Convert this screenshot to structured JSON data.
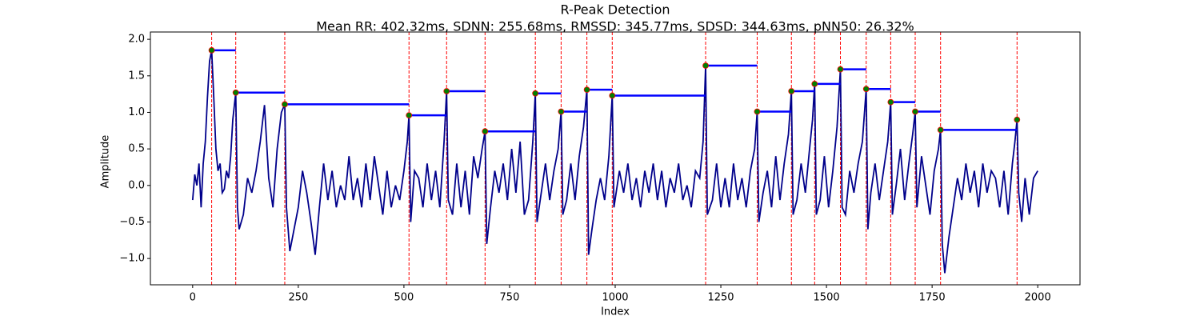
{
  "chart_data": {
    "type": "line",
    "title": "R-Peak Detection",
    "subtitle": "Mean RR: 402.32ms, SDNN: 255.68ms, RMSSD: 345.77ms, SDSD: 344.63ms, pNN50: 26.32%",
    "x_label": "Index",
    "y_label": "Amplitude",
    "xlim": [
      -100,
      2100
    ],
    "ylim": [
      -1.36,
      2.1
    ],
    "xticks": [
      0,
      250,
      500,
      750,
      1000,
      1250,
      1500,
      1750,
      2000
    ],
    "yticks": [
      {
        "value": -1,
        "label": "−1.0"
      },
      {
        "value": -0.5,
        "label": "−0.5"
      },
      {
        "value": 0,
        "label": "0.0"
      },
      0.5,
      {
        "value": 1,
        "label": "1.0"
      },
      1.5,
      {
        "value": 2,
        "label": "2.0"
      }
    ],
    "grid": false,
    "signal": {
      "color": "#00008b",
      "x": [
        0,
        5,
        10,
        15,
        20,
        25,
        30,
        35,
        40,
        45,
        50,
        55,
        60,
        65,
        70,
        75,
        80,
        85,
        90,
        95,
        102,
        106,
        110,
        120,
        130,
        140,
        150,
        160,
        170,
        175,
        180,
        190,
        200,
        210,
        218,
        222,
        230,
        240,
        250,
        260,
        270,
        280,
        290,
        300,
        310,
        320,
        330,
        340,
        350,
        360,
        370,
        380,
        390,
        400,
        410,
        420,
        430,
        440,
        450,
        460,
        470,
        480,
        490,
        500,
        508,
        512,
        516,
        525,
        535,
        545,
        555,
        565,
        575,
        585,
        595,
        601,
        605,
        615,
        625,
        635,
        645,
        655,
        665,
        675,
        685,
        692,
        696,
        705,
        715,
        725,
        735,
        745,
        755,
        765,
        775,
        785,
        795,
        805,
        811,
        815,
        825,
        835,
        845,
        855,
        865,
        872,
        876,
        885,
        895,
        905,
        915,
        925,
        933,
        937,
        945,
        955,
        965,
        975,
        985,
        993,
        997,
        1010,
        1020,
        1030,
        1040,
        1050,
        1060,
        1070,
        1080,
        1090,
        1100,
        1110,
        1120,
        1130,
        1140,
        1150,
        1160,
        1170,
        1180,
        1190,
        1200,
        1208,
        1214,
        1218,
        1230,
        1240,
        1250,
        1260,
        1270,
        1280,
        1290,
        1300,
        1310,
        1320,
        1330,
        1336,
        1340,
        1350,
        1360,
        1370,
        1380,
        1390,
        1400,
        1410,
        1417,
        1421,
        1430,
        1440,
        1450,
        1460,
        1467,
        1472,
        1476,
        1485,
        1495,
        1505,
        1515,
        1525,
        1533,
        1537,
        1545,
        1555,
        1565,
        1575,
        1585,
        1594,
        1598,
        1605,
        1615,
        1625,
        1635,
        1645,
        1652,
        1656,
        1665,
        1675,
        1685,
        1695,
        1704,
        1710,
        1714,
        1725,
        1735,
        1745,
        1755,
        1765,
        1770,
        1774,
        1780,
        1790,
        1800,
        1810,
        1820,
        1830,
        1840,
        1850,
        1860,
        1870,
        1880,
        1890,
        1900,
        1910,
        1920,
        1930,
        1940,
        1946,
        1951,
        1955,
        1962,
        1970,
        1980,
        1990,
        2000
      ],
      "values": [
        -0.2,
        0.15,
        0.0,
        0.3,
        -0.3,
        0.3,
        0.6,
        1.2,
        1.7,
        1.85,
        1.2,
        0.5,
        0.2,
        0.3,
        -0.1,
        -0.05,
        0.2,
        0.1,
        0.4,
        0.9,
        1.27,
        -0.3,
        -0.6,
        -0.4,
        0.1,
        -0.1,
        0.2,
        0.6,
        1.1,
        0.6,
        0.1,
        -0.3,
        0.5,
        1.0,
        1.11,
        -0.3,
        -0.9,
        -0.6,
        -0.3,
        0.2,
        -0.1,
        -0.5,
        -0.95,
        -0.3,
        0.3,
        -0.2,
        0.2,
        -0.3,
        0.0,
        -0.2,
        0.4,
        -0.2,
        0.1,
        -0.3,
        0.3,
        -0.2,
        0.4,
        0.0,
        -0.4,
        0.2,
        -0.3,
        0.0,
        -0.2,
        0.2,
        0.6,
        0.96,
        -0.5,
        0.2,
        0.1,
        -0.3,
        0.3,
        -0.2,
        0.2,
        -0.3,
        0.6,
        1.29,
        -0.2,
        -0.4,
        0.3,
        -0.3,
        0.2,
        -0.4,
        0.4,
        0.1,
        0.5,
        0.74,
        -0.8,
        -0.3,
        0.2,
        -0.1,
        0.3,
        -0.2,
        0.5,
        -0.1,
        0.6,
        -0.4,
        -0.2,
        0.6,
        1.26,
        -0.5,
        -0.1,
        0.3,
        -0.2,
        0.2,
        0.5,
        1.01,
        -0.4,
        -0.2,
        0.3,
        -0.2,
        0.4,
        0.8,
        1.31,
        -0.95,
        -0.6,
        -0.2,
        0.1,
        -0.2,
        0.4,
        1.23,
        -0.3,
        0.2,
        -0.1,
        0.3,
        -0.2,
        0.1,
        -0.3,
        0.2,
        -0.1,
        0.3,
        -0.2,
        0.2,
        -0.3,
        0.1,
        -0.1,
        0.3,
        -0.2,
        0.0,
        -0.3,
        0.2,
        0.1,
        0.6,
        1.64,
        -0.4,
        -0.2,
        0.3,
        -0.3,
        0.1,
        -0.3,
        0.3,
        -0.2,
        0.1,
        -0.3,
        0.2,
        0.5,
        1.01,
        -0.5,
        -0.1,
        0.2,
        -0.3,
        0.4,
        -0.2,
        0.3,
        0.7,
        1.29,
        -0.4,
        -0.2,
        0.3,
        -0.1,
        0.5,
        0.9,
        1.39,
        -0.4,
        -0.2,
        0.4,
        -0.3,
        0.2,
        0.8,
        1.59,
        -0.3,
        -0.4,
        0.2,
        -0.1,
        0.3,
        0.6,
        1.32,
        -0.6,
        -0.1,
        0.3,
        -0.2,
        0.2,
        0.6,
        1.14,
        -0.4,
        0.0,
        0.5,
        -0.2,
        0.3,
        0.7,
        1.01,
        -0.3,
        0.4,
        0.0,
        -0.4,
        0.2,
        0.5,
        0.76,
        -0.8,
        -1.2,
        -0.7,
        -0.3,
        0.1,
        -0.2,
        0.3,
        -0.1,
        0.2,
        -0.3,
        0.3,
        -0.1,
        0.2,
        0.1,
        -0.3,
        0.2,
        -0.4,
        0.3,
        0.6,
        0.9,
        -0.1,
        -0.5,
        0.1,
        -0.4,
        0.1,
        0.2
      ]
    },
    "peaks": {
      "color": "#008000",
      "edge_color": "#ff0000",
      "x": [
        45,
        102,
        218,
        512,
        601,
        692,
        811,
        872,
        933,
        993,
        1214,
        1336,
        1417,
        1472,
        1533,
        1594,
        1652,
        1710,
        1770,
        1951
      ],
      "values": [
        1.85,
        1.27,
        1.11,
        0.96,
        1.29,
        0.74,
        1.26,
        1.01,
        1.31,
        1.23,
        1.64,
        1.01,
        1.29,
        1.39,
        1.59,
        1.32,
        1.14,
        1.01,
        0.76,
        0.9
      ]
    },
    "peak_line_color": "#ff0000",
    "interval_color": "#0000ff"
  }
}
